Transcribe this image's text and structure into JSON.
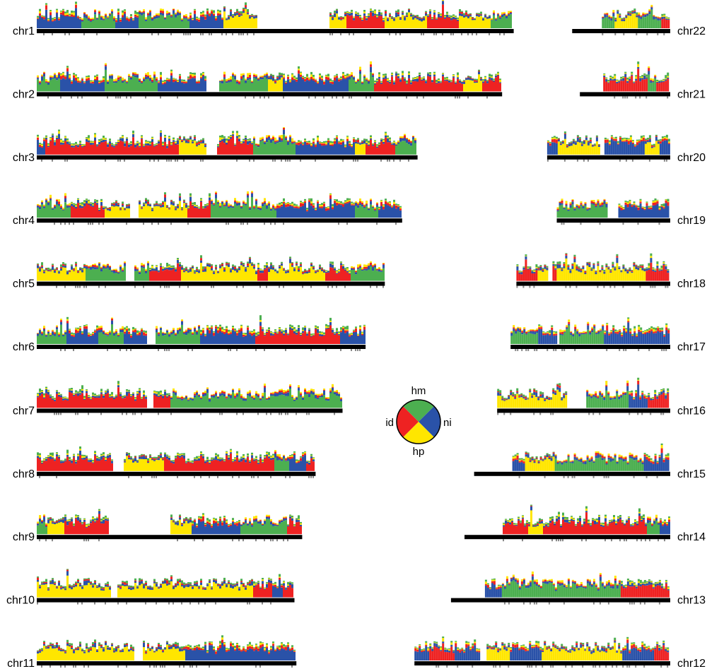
{
  "chart_data": {
    "type": "bar",
    "title": "",
    "xlabel": "",
    "ylabel": "",
    "grid": false,
    "legend_placement": "center",
    "colors": {
      "hm": "#4caf50",
      "ni": "#2a52a8",
      "hp": "#ffe600",
      "id": "#ee2222",
      "axis": "#000000",
      "tick": "#888888"
    },
    "legend": {
      "style": "circle",
      "entries": [
        {
          "key": "hm",
          "label": "hm",
          "color": "#4caf50"
        },
        {
          "key": "ni",
          "label": "ni",
          "color": "#2a52a8"
        },
        {
          "key": "hp",
          "label": "hp",
          "color": "#ffe600"
        },
        {
          "key": "id",
          "label": "id",
          "color": "#ee2222"
        }
      ]
    },
    "chromosomes": [
      {
        "name": "chr1",
        "column": "left",
        "row": 0,
        "length": 248,
        "centromere": [
          128,
          152
        ],
        "segments": [
          [
            0,
            23,
            "ni"
          ],
          [
            23,
            41,
            "hm"
          ],
          [
            41,
            53,
            "ni"
          ],
          [
            53,
            79,
            "hm"
          ],
          [
            79,
            97,
            "ni"
          ],
          [
            97,
            115,
            "yellow"
          ],
          [
            152,
            161,
            "yellow"
          ],
          [
            161,
            181,
            "red"
          ],
          [
            181,
            203,
            "yellow"
          ],
          [
            203,
            219,
            "red"
          ],
          [
            219,
            236,
            "yellow"
          ],
          [
            236,
            248,
            "hm"
          ]
        ]
      },
      {
        "name": "chr2",
        "column": "left",
        "row": 1,
        "length": 242,
        "centromere": [
          88,
          95
        ],
        "segments": [
          [
            0,
            12,
            "hm"
          ],
          [
            12,
            35,
            "ni"
          ],
          [
            35,
            63,
            "hm"
          ],
          [
            63,
            88,
            "ni"
          ],
          [
            95,
            120,
            "hm"
          ],
          [
            120,
            128,
            "yellow"
          ],
          [
            128,
            162,
            "ni"
          ],
          [
            162,
            175,
            "hm"
          ],
          [
            175,
            222,
            "red"
          ],
          [
            222,
            232,
            "yellow"
          ],
          [
            232,
            242,
            "red"
          ]
        ]
      },
      {
        "name": "chr3",
        "column": "left",
        "row": 2,
        "length": 198,
        "centromere": [
          88,
          94
        ],
        "segments": [
          [
            0,
            4,
            "ni"
          ],
          [
            4,
            52,
            "red"
          ],
          [
            52,
            74,
            "red"
          ],
          [
            74,
            88,
            "yellow"
          ],
          [
            94,
            112,
            "red"
          ],
          [
            112,
            135,
            "hm"
          ],
          [
            135,
            165,
            "ni"
          ],
          [
            165,
            171,
            "yellow"
          ],
          [
            171,
            186,
            "red"
          ],
          [
            186,
            198,
            "hm"
          ]
        ]
      },
      {
        "name": "chr4",
        "column": "left",
        "row": 3,
        "length": 190,
        "centromere": [
          49,
          53
        ],
        "segments": [
          [
            0,
            18,
            "hm"
          ],
          [
            18,
            35,
            "red"
          ],
          [
            35,
            49,
            "yellow"
          ],
          [
            53,
            78,
            "yellow"
          ],
          [
            78,
            90,
            "red"
          ],
          [
            90,
            125,
            "hm"
          ],
          [
            125,
            165,
            "ni"
          ],
          [
            165,
            178,
            "hm"
          ],
          [
            178,
            190,
            "ni"
          ]
        ]
      },
      {
        "name": "chr5",
        "column": "left",
        "row": 4,
        "length": 181,
        "centromere": [
          46,
          51
        ],
        "segments": [
          [
            0,
            25,
            "yellow"
          ],
          [
            25,
            46,
            "hm"
          ],
          [
            51,
            58,
            "hm"
          ],
          [
            58,
            75,
            "red"
          ],
          [
            75,
            115,
            "yellow"
          ],
          [
            115,
            120,
            "red"
          ],
          [
            120,
            150,
            "yellow"
          ],
          [
            150,
            163,
            "red"
          ],
          [
            163,
            181,
            "hm"
          ]
        ]
      },
      {
        "name": "chr6",
        "column": "left",
        "row": 5,
        "length": 171,
        "centromere": [
          57,
          62
        ],
        "segments": [
          [
            0,
            15,
            "hm"
          ],
          [
            15,
            32,
            "ni"
          ],
          [
            32,
            45,
            "hm"
          ],
          [
            45,
            57,
            "ni"
          ],
          [
            62,
            85,
            "hm"
          ],
          [
            85,
            114,
            "ni"
          ],
          [
            114,
            158,
            "red"
          ],
          [
            158,
            171,
            "ni"
          ]
        ]
      },
      {
        "name": "chr7",
        "column": "left",
        "row": 6,
        "length": 159,
        "centromere": [
          57,
          61
        ],
        "segments": [
          [
            0,
            57,
            "red"
          ],
          [
            61,
            70,
            "red"
          ],
          [
            70,
            88,
            "hm"
          ],
          [
            88,
            104,
            "hm"
          ],
          [
            104,
            137,
            "hm"
          ],
          [
            137,
            159,
            "hm"
          ]
        ]
      },
      {
        "name": "chr8",
        "column": "left",
        "row": 7,
        "length": 145,
        "centromere": [
          40,
          45
        ],
        "segments": [
          [
            0,
            40,
            "red"
          ],
          [
            45,
            66,
            "yellow"
          ],
          [
            66,
            83,
            "red"
          ],
          [
            83,
            90,
            "red"
          ],
          [
            90,
            110,
            "red"
          ],
          [
            110,
            123,
            "red"
          ],
          [
            123,
            131,
            "hm"
          ],
          [
            131,
            140,
            "ni"
          ],
          [
            140,
            145,
            "red"
          ]
        ]
      },
      {
        "name": "chr9",
        "column": "left",
        "row": 8,
        "length": 138,
        "centromere": [
          38,
          69
        ],
        "segments": [
          [
            0,
            5,
            "hm"
          ],
          [
            5,
            14,
            "yellow"
          ],
          [
            14,
            24,
            "red"
          ],
          [
            24,
            38,
            "red"
          ],
          [
            69,
            81,
            "yellow"
          ],
          [
            81,
            106,
            "ni"
          ],
          [
            106,
            130,
            "hm"
          ],
          [
            130,
            138,
            "red"
          ]
        ]
      },
      {
        "name": "chr10",
        "column": "left",
        "row": 9,
        "length": 134,
        "centromere": [
          39,
          42
        ],
        "segments": [
          [
            0,
            39,
            "yellow"
          ],
          [
            42,
            113,
            "yellow"
          ],
          [
            113,
            122,
            "red"
          ],
          [
            122,
            128,
            "ni"
          ],
          [
            128,
            134,
            "red"
          ]
        ]
      },
      {
        "name": "chr11",
        "column": "left",
        "row": 10,
        "length": 135,
        "centromere": [
          51,
          55
        ],
        "segments": [
          [
            0,
            51,
            "yellow"
          ],
          [
            55,
            77,
            "yellow"
          ],
          [
            77,
            110,
            "ni"
          ],
          [
            110,
            135,
            "ni"
          ]
        ]
      },
      {
        "name": "chr12",
        "column": "right",
        "row": 10,
        "length": 133,
        "centromere": [
          34,
          37
        ],
        "segments": [
          [
            0,
            8,
            "ni"
          ],
          [
            8,
            21,
            "red"
          ],
          [
            21,
            34,
            "ni"
          ],
          [
            37,
            50,
            "yellow"
          ],
          [
            50,
            66,
            "ni"
          ],
          [
            66,
            108,
            "yellow"
          ],
          [
            108,
            125,
            "ni"
          ],
          [
            125,
            133,
            "red"
          ]
        ]
      },
      {
        "name": "chr13",
        "column": "right",
        "row": 9,
        "length": 114,
        "centromere": [
          0,
          18
        ],
        "segments": [
          [
            18,
            26,
            "ni"
          ],
          [
            26,
            88,
            "hm"
          ],
          [
            88,
            114,
            "red"
          ]
        ]
      },
      {
        "name": "chr14",
        "column": "right",
        "row": 8,
        "length": 107,
        "centromere": [
          0,
          20
        ],
        "segments": [
          [
            20,
            33,
            "red"
          ],
          [
            33,
            41,
            "yellow"
          ],
          [
            41,
            84,
            "red"
          ],
          [
            84,
            95,
            "red"
          ],
          [
            95,
            102,
            "hm"
          ],
          [
            102,
            107,
            "ni"
          ]
        ]
      },
      {
        "name": "chr15",
        "column": "right",
        "row": 7,
        "length": 102,
        "centromere": [
          0,
          20
        ],
        "segments": [
          [
            20,
            26,
            "ni"
          ],
          [
            26,
            42,
            "yellow"
          ],
          [
            42,
            88,
            "hm"
          ],
          [
            88,
            102,
            "ni"
          ]
        ]
      },
      {
        "name": "chr16",
        "column": "right",
        "row": 6,
        "length": 90,
        "centromere": [
          36,
          46
        ],
        "segments": [
          [
            0,
            21,
            "yellow"
          ],
          [
            21,
            36,
            "yellow"
          ],
          [
            46,
            68,
            "hm"
          ],
          [
            68,
            78,
            "ni"
          ],
          [
            78,
            90,
            "red"
          ]
        ]
      },
      {
        "name": "chr17",
        "column": "right",
        "row": 5,
        "length": 83,
        "centromere": [
          24,
          25
        ],
        "segments": [
          [
            0,
            14,
            "hm"
          ],
          [
            14,
            24,
            "ni"
          ],
          [
            25,
            48,
            "hm"
          ],
          [
            48,
            83,
            "ni"
          ]
        ]
      },
      {
        "name": "chr18",
        "column": "right",
        "row": 4,
        "length": 80,
        "centromere": [
          17,
          19
        ],
        "segments": [
          [
            0,
            11,
            "red"
          ],
          [
            11,
            17,
            "yellow"
          ],
          [
            19,
            21,
            "red"
          ],
          [
            21,
            67,
            "yellow"
          ],
          [
            67,
            80,
            "red"
          ]
        ]
      },
      {
        "name": "chr19",
        "column": "right",
        "row": 3,
        "length": 59,
        "centromere": [
          26,
          32
        ],
        "segments": [
          [
            0,
            26,
            "hm"
          ],
          [
            32,
            58,
            "ni"
          ]
        ]
      },
      {
        "name": "chr20",
        "column": "right",
        "row": 2,
        "length": 64,
        "centromere": [
          28,
          30
        ],
        "segments": [
          [
            0,
            6,
            "ni"
          ],
          [
            6,
            28,
            "yellow"
          ],
          [
            30,
            51,
            "ni"
          ],
          [
            51,
            58,
            "yellow"
          ],
          [
            58,
            64,
            "ni"
          ]
        ]
      },
      {
        "name": "chr21",
        "column": "right",
        "row": 1,
        "length": 47,
        "centromere": [
          0,
          12
        ],
        "segments": [
          [
            12,
            35,
            "red"
          ],
          [
            35,
            40,
            "hm"
          ],
          [
            40,
            47,
            "red"
          ]
        ]
      },
      {
        "name": "chr22",
        "column": "right",
        "row": 0,
        "length": 51,
        "centromere": [
          0,
          15
        ],
        "segments": [
          [
            15,
            22,
            "hm"
          ],
          [
            22,
            34,
            "yellow"
          ],
          [
            34,
            46,
            "hm"
          ],
          [
            46,
            51,
            "red"
          ]
        ]
      }
    ]
  }
}
